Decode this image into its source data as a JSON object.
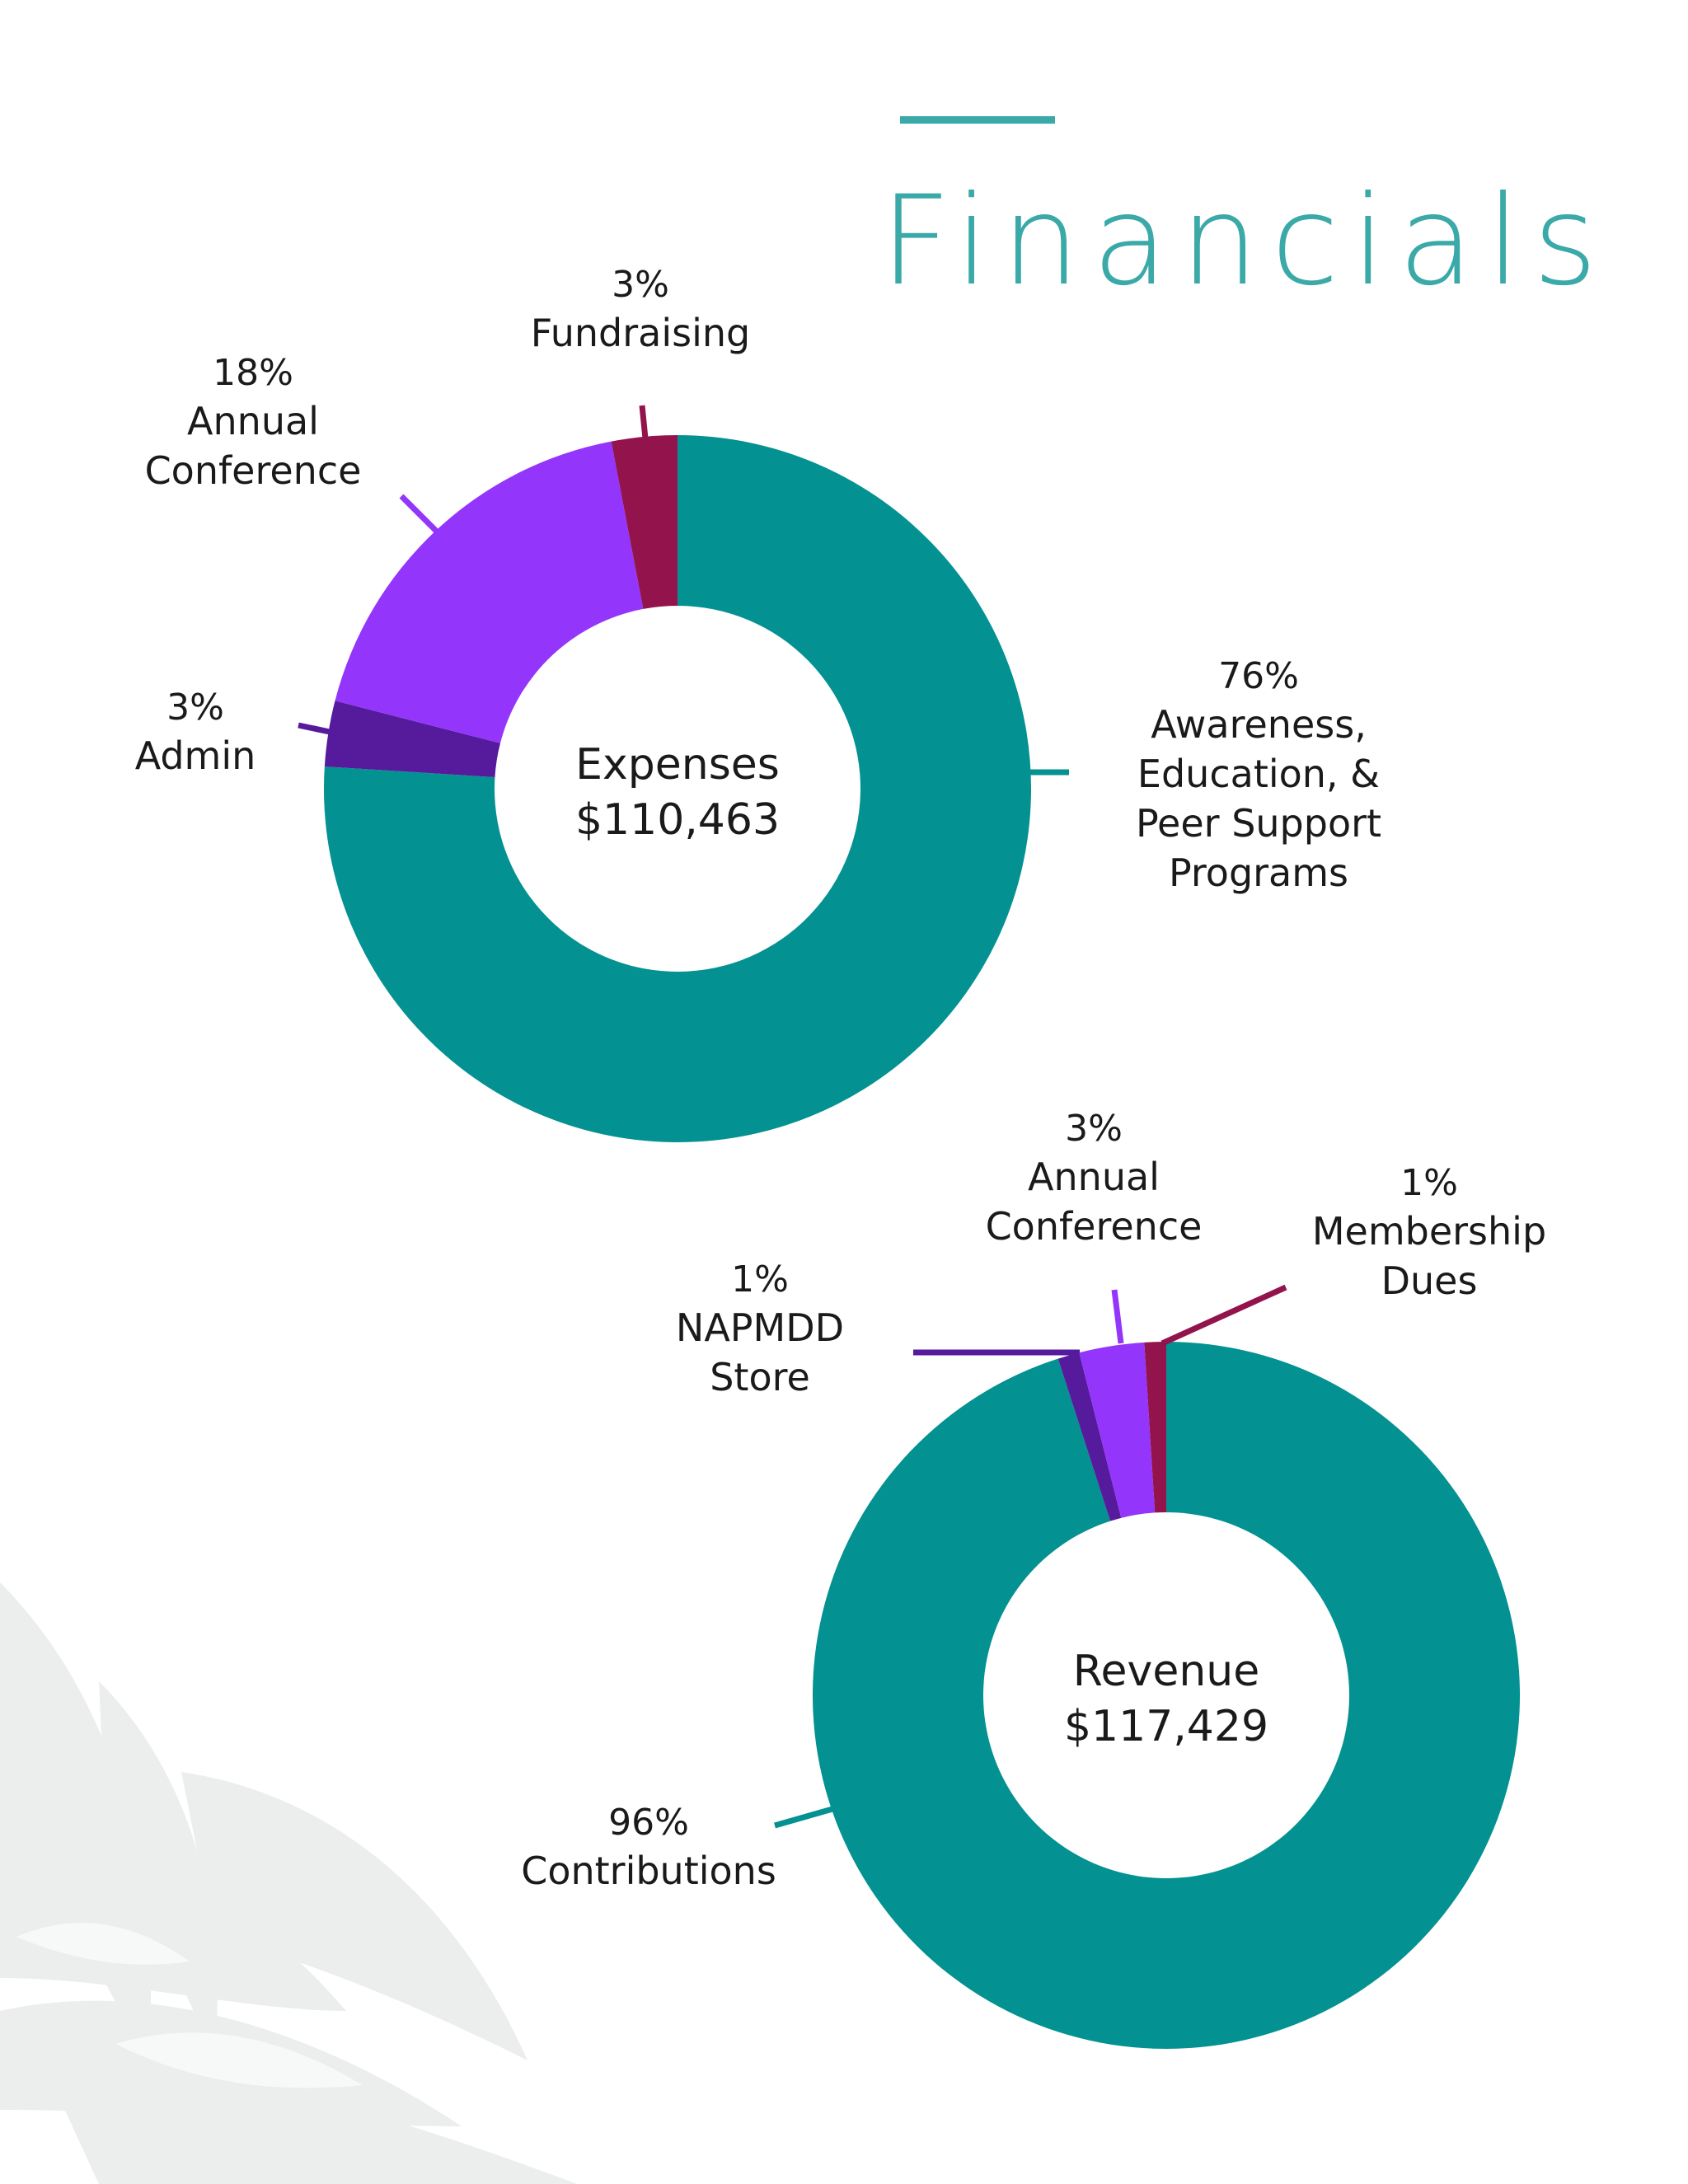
{
  "page": {
    "title": "Financials",
    "title_color": "#3aa9a8"
  },
  "colors": {
    "teal": "#039191",
    "purple": "#9335fb",
    "dark_purple": "#561a9c",
    "maroon": "#93134c",
    "text": "#1a1a1a"
  },
  "chart_data": [
    {
      "type": "pie",
      "donut": true,
      "center_title": "Expenses",
      "center_value": "$110,463",
      "slices": [
        {
          "label": "Awareness, Education, & Peer Support Programs",
          "label_lines": [
            "Awareness,",
            "Education, &",
            "Peer Support",
            "Programs"
          ],
          "value": 76,
          "value_label": "76%",
          "color": "#039191"
        },
        {
          "label": "Admin",
          "label_lines": [
            "Admin"
          ],
          "value": 3,
          "value_label": "3%",
          "color": "#561a9c"
        },
        {
          "label": "Annual Conference",
          "label_lines": [
            "Annual",
            "Conference"
          ],
          "value": 18,
          "value_label": "18%",
          "color": "#9335fb"
        },
        {
          "label": "Fundraising",
          "label_lines": [
            "Fundraising"
          ],
          "value": 3,
          "value_label": "3%",
          "color": "#93134c"
        }
      ]
    },
    {
      "type": "pie",
      "donut": true,
      "center_title": "Revenue",
      "center_value": "$117,429",
      "slices": [
        {
          "label": "Contributions",
          "label_lines": [
            "Contributions"
          ],
          "value": 96,
          "value_label": "96%",
          "color": "#039191"
        },
        {
          "label": "NAPMDD Store",
          "label_lines": [
            "NAPMDD",
            "Store"
          ],
          "value": 1,
          "value_label": "1%",
          "color": "#561a9c"
        },
        {
          "label": "Annual Conference",
          "label_lines": [
            "Annual",
            "Conference"
          ],
          "value": 3,
          "value_label": "3%",
          "color": "#9335fb"
        },
        {
          "label": "Membership Dues",
          "label_lines": [
            "Membership",
            "Dues"
          ],
          "value": 1,
          "value_label": "1%",
          "color": "#93134c"
        }
      ]
    }
  ]
}
